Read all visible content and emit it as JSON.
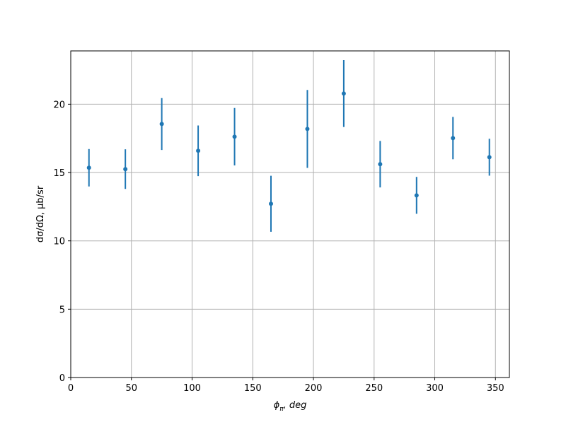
{
  "chart_data": {
    "type": "errorbar",
    "xlabel": {
      "symbol": "ϕ",
      "subscript": "π",
      "rest": ", deg"
    },
    "ylabel": "dσ/dΩ, μb/sr",
    "x": [
      15,
      45,
      75,
      105,
      135,
      165,
      195,
      225,
      255,
      285,
      315,
      345
    ],
    "values": [
      15.35,
      15.25,
      18.55,
      16.59,
      17.62,
      12.71,
      18.19,
      20.78,
      15.61,
      13.33,
      17.52,
      16.12
    ],
    "errors": [
      1.37,
      1.45,
      1.9,
      1.85,
      2.1,
      2.05,
      2.85,
      2.45,
      1.7,
      1.35,
      1.55,
      1.35
    ],
    "color": "#1f77b4",
    "xlim": [
      0,
      361.5
    ],
    "xticks": [
      0,
      50,
      100,
      150,
      200,
      250,
      300,
      350
    ],
    "ylim": [
      0,
      23.9
    ],
    "yticks": [
      0,
      5,
      10,
      15,
      20
    ],
    "grid": true
  }
}
